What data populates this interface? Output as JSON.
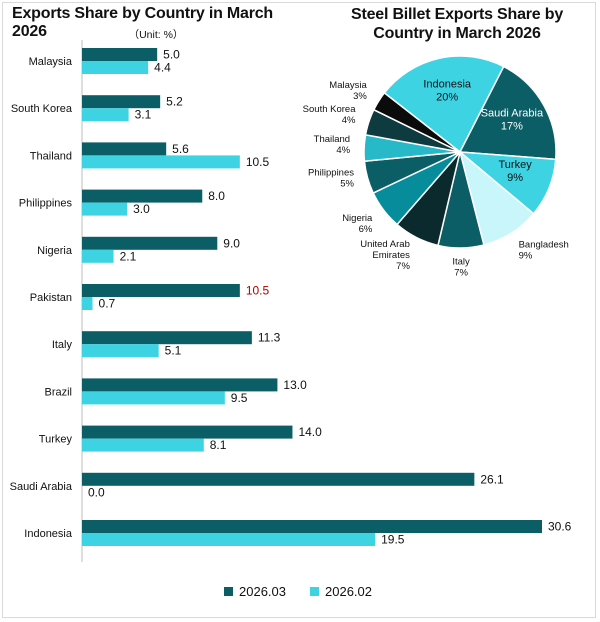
{
  "bar_title": "Exports Share by Country in March 2026",
  "unit_label": "（Unit: %）",
  "pie_title": "Steel Billet Exports Share by Country in March 2026",
  "colors": {
    "current": "#0b5e66",
    "previous": "#3ed3e3",
    "highlight": "#b00000",
    "label": "#111111"
  },
  "chart_data": [
    {
      "type": "bar",
      "orientation": "horizontal",
      "title": "Exports Share by Country in March 2026",
      "unit": "%",
      "categories": [
        "Malaysia",
        "South Korea",
        "Thailand",
        "Philippines",
        "Nigeria",
        "Pakistan",
        "Italy",
        "Brazil",
        "Turkey",
        "Saudi Arabia",
        "Indonesia"
      ],
      "series": [
        {
          "name": "2026.03",
          "values": [
            5.0,
            5.2,
            5.6,
            8.0,
            9.0,
            10.5,
            11.3,
            13.0,
            14.0,
            26.1,
            30.6
          ]
        },
        {
          "name": "2026.02",
          "values": [
            4.4,
            3.1,
            10.5,
            3.0,
            2.1,
            0.7,
            5.1,
            9.5,
            8.1,
            0.0,
            19.5
          ]
        }
      ],
      "value_labels": [
        [
          "5.0",
          "5.2",
          "5.6",
          "8.0",
          "9.0",
          "10.5",
          "11.3",
          "13.0",
          "14.0",
          "26.1",
          "30.6"
        ],
        [
          "4.4",
          "3.1",
          "10.5",
          "3.0",
          "2.1",
          "0.7",
          "5.1",
          "9.5",
          "8.1",
          "0.0",
          "19.5"
        ]
      ],
      "highlighted_label": {
        "series": 0,
        "category": "Pakistan"
      },
      "xlim": [
        0,
        30.6
      ],
      "grid": false,
      "legend_position": "bottom"
    },
    {
      "type": "pie",
      "title": "Steel Billet Exports Share by Country in March 2026",
      "slices": [
        {
          "label": "Indonesia",
          "value": 20,
          "pct_label": "20%",
          "color": "#3ed3e3",
          "label_inside": true
        },
        {
          "label": "Saudi Arabia",
          "value": 17,
          "pct_label": "17%",
          "color": "#0b5e66",
          "label_inside": true
        },
        {
          "label": "Turkey",
          "value": 9,
          "pct_label": "9%",
          "color": "#3ed3e3",
          "label_inside": true
        },
        {
          "label": "Bangladesh",
          "value": 9,
          "pct_label": "9%",
          "color": "#c9f6fb",
          "label_inside": false
        },
        {
          "label": "Italy",
          "value": 7,
          "pct_label": "7%",
          "color": "#0b5e66",
          "label_inside": false
        },
        {
          "label": "United Arab Emirates",
          "value": 7,
          "pct_label": "7%",
          "color": "#0b2a2d",
          "label_inside": false,
          "label_lines": [
            "United Arab",
            "Emirates"
          ]
        },
        {
          "label": "Nigeria",
          "value": 6,
          "pct_label": "6%",
          "color": "#078c9b",
          "label_inside": false
        },
        {
          "label": "Philippines",
          "value": 5,
          "pct_label": "5%",
          "color": "#0b5e66",
          "label_inside": false
        },
        {
          "label": "Thailand",
          "value": 4,
          "pct_label": "4%",
          "color": "#28b9c9",
          "label_inside": false
        },
        {
          "label": "South Korea",
          "value": 4,
          "pct_label": "4%",
          "color": "#0e3b40",
          "label_inside": false
        },
        {
          "label": "Malaysia",
          "value": 3,
          "pct_label": "3%",
          "color": "#0b0b0b",
          "label_inside": false
        }
      ]
    }
  ]
}
